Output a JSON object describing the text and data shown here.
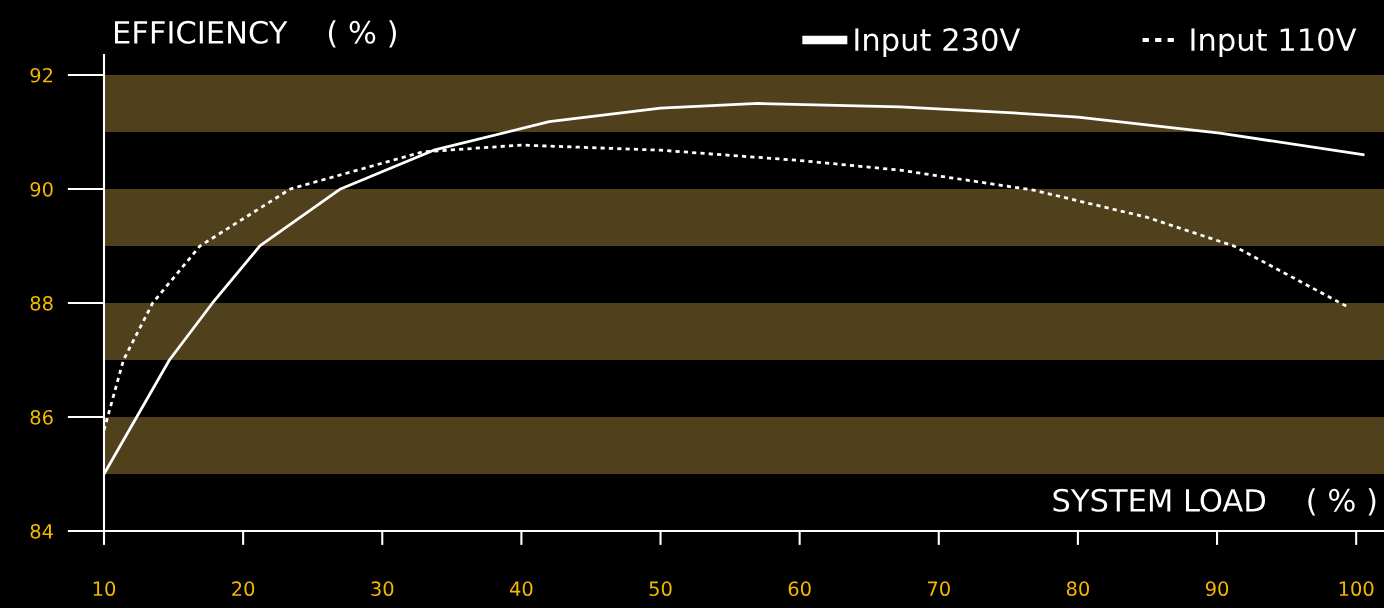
{
  "chart_data": {
    "type": "line",
    "xlabel": "SYSTEM LOAD    ( % )",
    "ylabel": "EFFICIENCY    ( % )",
    "xlim": [
      10,
      102
    ],
    "ylim": [
      84,
      92.35
    ],
    "xticks": [
      10,
      20,
      30,
      40,
      50,
      60,
      70,
      80,
      90,
      100
    ],
    "yticks": [
      84,
      86,
      88,
      90,
      92
    ],
    "grid": false,
    "legend": "top right",
    "marker": "none",
    "bands": [
      {
        "axis": "y",
        "from": 85,
        "to": 86,
        "color": "#51401c"
      },
      {
        "axis": "y",
        "from": 87,
        "to": 88,
        "color": "#51401c"
      },
      {
        "axis": "y",
        "from": 89,
        "to": 90,
        "color": "#51401c"
      },
      {
        "axis": "y",
        "from": 91,
        "to": 92,
        "color": "#51401c"
      }
    ],
    "series": [
      {
        "name": "Input 230V",
        "color": "#ffffff",
        "line_style": "solid",
        "x": [
          10,
          14.7,
          17.8,
          21.2,
          27,
          33.7,
          42,
          50,
          57,
          67.2,
          75,
          80,
          90.2,
          100.5
        ],
        "values": [
          85.0,
          87.0,
          88.0,
          89.0,
          90.0,
          90.68,
          91.18,
          91.42,
          91.5,
          91.44,
          91.34,
          91.26,
          90.98,
          90.6
        ]
      },
      {
        "name": "Input 110V",
        "color": "#ffffff",
        "line_style": "dotted",
        "x": [
          10,
          11.4,
          13.5,
          16.9,
          23.4,
          32.9,
          40,
          50,
          60,
          67.2,
          76.8,
          85,
          91.2,
          99.4
        ],
        "values": [
          85.77,
          87.0,
          88.0,
          89.0,
          90.0,
          90.65,
          90.77,
          90.68,
          90.5,
          90.33,
          89.98,
          89.5,
          89.0,
          87.93
        ]
      }
    ]
  }
}
